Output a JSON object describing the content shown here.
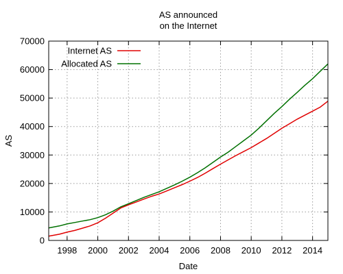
{
  "chart_data": {
    "type": "line",
    "title_lines": [
      "AS announced",
      "on the Internet"
    ],
    "xlabel": "Date",
    "ylabel": "AS",
    "xlim": [
      1996.8,
      2015.0
    ],
    "ylim": [
      0,
      70000
    ],
    "x_ticks": [
      1998,
      2000,
      2002,
      2004,
      2006,
      2008,
      2010,
      2012,
      2014
    ],
    "y_ticks": [
      0,
      10000,
      20000,
      30000,
      40000,
      50000,
      60000,
      70000
    ],
    "grid": true,
    "legend_position": "top-left",
    "series": [
      {
        "name": "Internet AS",
        "color": "#e00000",
        "x": [
          1996.8,
          1997.5,
          1998.0,
          1998.5,
          1999.0,
          1999.5,
          2000.0,
          2000.5,
          2001.0,
          2001.5,
          2002.0,
          2002.5,
          2003.0,
          2003.5,
          2004.0,
          2004.5,
          2005.0,
          2005.5,
          2006.0,
          2006.5,
          2007.0,
          2007.5,
          2008.0,
          2008.5,
          2009.0,
          2009.5,
          2010.0,
          2010.5,
          2011.0,
          2011.5,
          2012.0,
          2012.5,
          2013.0,
          2013.5,
          2014.0,
          2014.5,
          2015.0
        ],
        "y": [
          1500,
          2200,
          2900,
          3500,
          4300,
          5100,
          6200,
          7800,
          9600,
          11400,
          12500,
          13500,
          14500,
          15500,
          16300,
          17400,
          18500,
          19600,
          20800,
          22100,
          23600,
          25200,
          26800,
          28300,
          29800,
          31200,
          32600,
          34200,
          35800,
          37600,
          39400,
          41000,
          42600,
          44000,
          45400,
          46800,
          48900
        ]
      },
      {
        "name": "Allocated AS",
        "color": "#007000",
        "x": [
          1996.8,
          1997.5,
          1998.0,
          1998.5,
          1999.0,
          1999.5,
          2000.0,
          2000.5,
          2001.0,
          2001.5,
          2002.0,
          2002.5,
          2003.0,
          2003.5,
          2004.0,
          2004.5,
          2005.0,
          2005.5,
          2006.0,
          2006.5,
          2007.0,
          2007.5,
          2008.0,
          2008.5,
          2009.0,
          2009.5,
          2010.0,
          2010.5,
          2011.0,
          2011.5,
          2012.0,
          2012.5,
          2013.0,
          2013.5,
          2014.0,
          2014.5,
          2015.0
        ],
        "y": [
          4400,
          5100,
          5800,
          6300,
          6800,
          7300,
          8000,
          9000,
          10300,
          11800,
          12900,
          14000,
          15100,
          16100,
          17100,
          18300,
          19500,
          20800,
          22200,
          23800,
          25500,
          27400,
          29300,
          31000,
          33000,
          35000,
          37000,
          39400,
          42000,
          44600,
          47000,
          49600,
          52000,
          54500,
          56800,
          59400,
          62000
        ]
      }
    ]
  }
}
